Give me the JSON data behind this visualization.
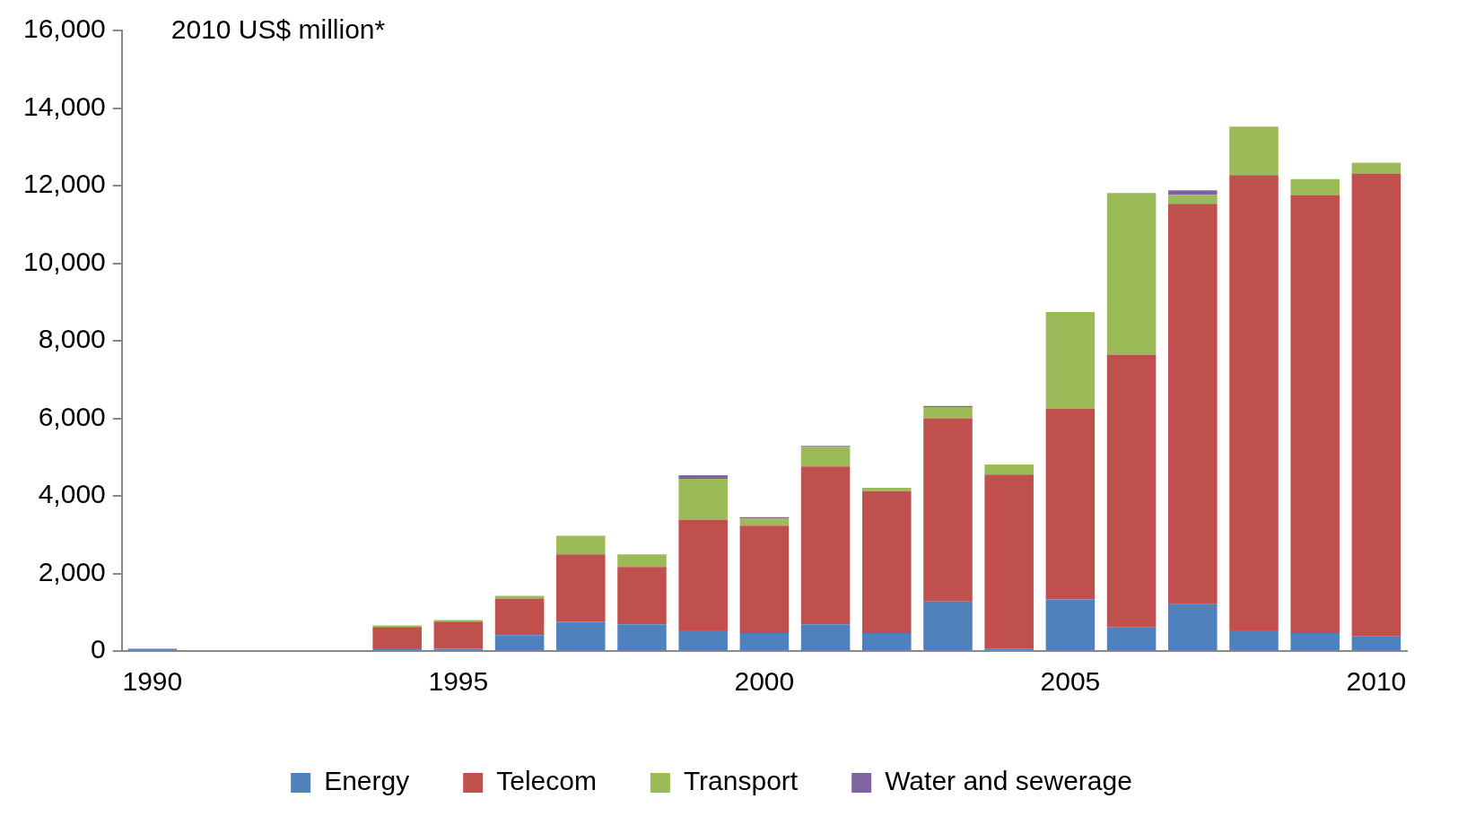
{
  "chart_data": {
    "type": "bar",
    "stacked": true,
    "ylabel": "2010 US$ million*",
    "categories": [
      "1990",
      null,
      null,
      null,
      null,
      "1995",
      null,
      null,
      null,
      null,
      "2000",
      null,
      null,
      null,
      null,
      "2005",
      null,
      null,
      null,
      null,
      "2010"
    ],
    "series": [
      {
        "name": "Energy",
        "color": "#4f81bd",
        "values": [
          60,
          0,
          0,
          0,
          70,
          60,
          410,
          750,
          690,
          530,
          460,
          690,
          460,
          1280,
          50,
          1330,
          620,
          1210,
          530,
          460,
          390
        ]
      },
      {
        "name": "Telecom",
        "color": "#c0504d",
        "values": [
          0,
          0,
          0,
          0,
          550,
          700,
          940,
          1740,
          1480,
          2860,
          2770,
          4070,
          3660,
          4720,
          4500,
          4920,
          7020,
          10320,
          11740,
          11300,
          11920
        ]
      },
      {
        "name": "Transport",
        "color": "#9bbb59",
        "values": [
          0,
          0,
          0,
          0,
          40,
          40,
          70,
          480,
          320,
          1050,
          180,
          500,
          90,
          290,
          260,
          2490,
          4170,
          230,
          1250,
          410,
          280
        ]
      },
      {
        "name": "Water and sewerage",
        "color": "#8064a2",
        "values": [
          0,
          0,
          0,
          0,
          0,
          0,
          0,
          0,
          0,
          90,
          40,
          30,
          0,
          30,
          0,
          0,
          0,
          120,
          0,
          0,
          0
        ]
      }
    ],
    "ylim": [
      0,
      16000
    ],
    "yticks": [
      0,
      {
        "value": 2000,
        "label": "2,000"
      },
      {
        "value": 4000,
        "label": "4,000"
      },
      {
        "value": 6000,
        "label": "6,000"
      },
      {
        "value": 8000,
        "label": "8,000"
      },
      {
        "value": 10000,
        "label": "10,000"
      },
      {
        "value": 12000,
        "label": "12,000"
      },
      {
        "value": 14000,
        "label": "14,000"
      },
      {
        "value": 16000,
        "label": "16,000"
      }
    ],
    "grid": false,
    "legend": "bottom"
  }
}
